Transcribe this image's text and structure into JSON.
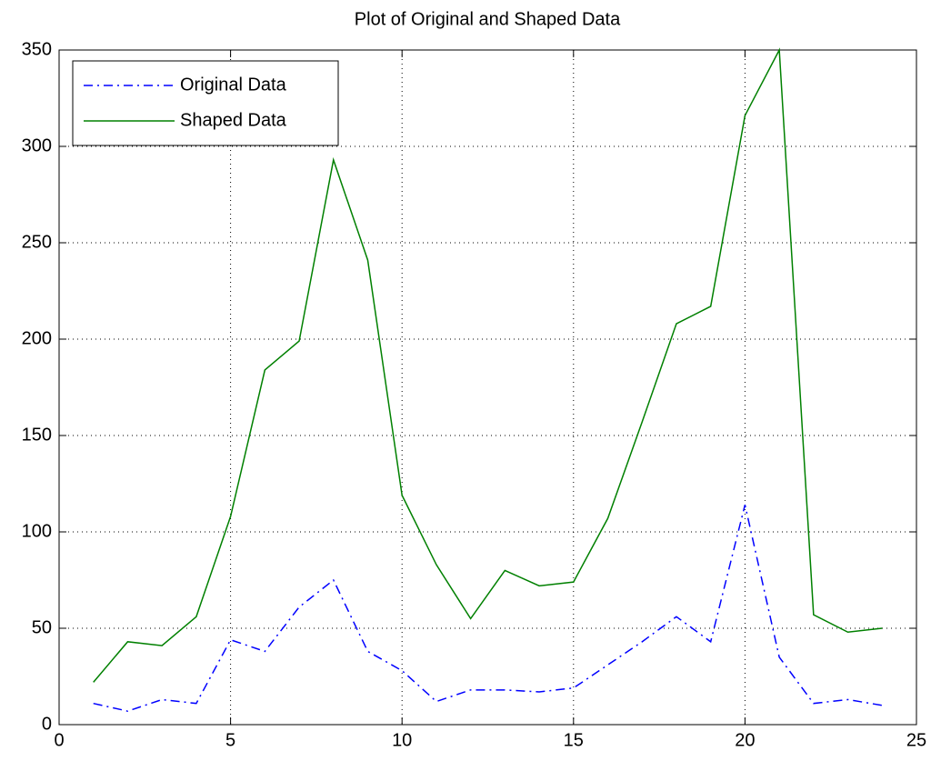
{
  "chart_data": {
    "type": "line",
    "title": "Plot of Original and Shaped Data",
    "x": [
      1,
      2,
      3,
      4,
      5,
      6,
      7,
      8,
      9,
      10,
      11,
      12,
      13,
      14,
      15,
      16,
      17,
      18,
      19,
      20,
      21,
      22,
      23,
      24
    ],
    "series": [
      {
        "name": "Original Data",
        "color": "#0000ff",
        "dash": "dashdot",
        "values": [
          11,
          7,
          13,
          11,
          44,
          38,
          61,
          75,
          38,
          28,
          12,
          18,
          18,
          17,
          19,
          31,
          43,
          56,
          43,
          114,
          35,
          11,
          13,
          10
        ]
      },
      {
        "name": "Shaped Data",
        "color": "#008000",
        "dash": "solid",
        "values": [
          22,
          43,
          41,
          56,
          108,
          184,
          199,
          293,
          241,
          119,
          83,
          55,
          80,
          72,
          74,
          107,
          157,
          208,
          217,
          316,
          350,
          57,
          48,
          50
        ]
      }
    ],
    "xlim": [
      0,
      25
    ],
    "xticks": [
      0,
      5,
      10,
      15,
      20,
      25
    ],
    "ylim": [
      0,
      350
    ],
    "yticks": [
      0,
      50,
      100,
      150,
      200,
      250,
      300,
      350
    ],
    "grid": true,
    "legend": "upper left"
  }
}
